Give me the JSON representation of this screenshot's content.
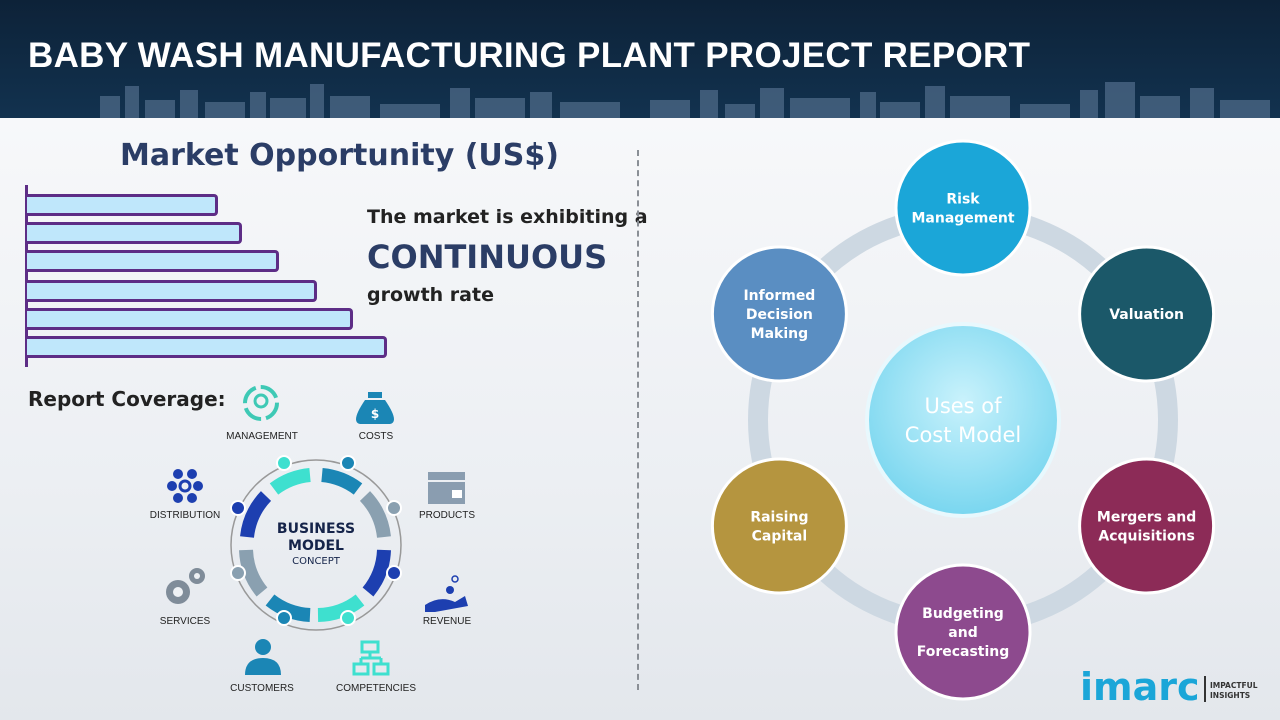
{
  "header": {
    "title": "BABY WASH MANUFACTURING PLANT PROJECT REPORT"
  },
  "market": {
    "title": "Market Opportunity (US$)",
    "line1": "The market is exhibiting a",
    "line2": "CONTINUOUS",
    "line3": "growth rate",
    "bars_trend": "increasing",
    "bar_color": "#bfe7fb",
    "bar_border": "#5d2d86"
  },
  "coverage": {
    "title": "Report Coverage:",
    "center_line1": "BUSINESS",
    "center_line2": "MODEL",
    "center_line3": "CONCEPT",
    "items": [
      "MANAGEMENT",
      "COSTS",
      "PRODUCTS",
      "REVENUE",
      "COMPETENCIES",
      "CUSTOMERS",
      "SERVICES",
      "DISTRIBUTION"
    ]
  },
  "uses": {
    "center_line1": "Uses of",
    "center_line2": "Cost Model",
    "items": [
      {
        "lines": [
          "Risk",
          "Management"
        ],
        "color": "#1ba6d8"
      },
      {
        "lines": [
          "Valuation"
        ],
        "color": "#1b5869"
      },
      {
        "lines": [
          "Mergers and",
          "Acquisitions"
        ],
        "color": "#8c2b57"
      },
      {
        "lines": [
          "Budgeting",
          "and",
          "Forecasting"
        ],
        "color": "#8d4a8e"
      },
      {
        "lines": [
          "Raising",
          "Capital"
        ],
        "color": "#b5953f"
      },
      {
        "lines": [
          "Informed",
          "Decision",
          "Making"
        ],
        "color": "#5a8ec2"
      }
    ]
  },
  "logo": {
    "brand": "imarc",
    "tag1": "IMPACTFUL",
    "tag2": "INSIGHTS"
  }
}
